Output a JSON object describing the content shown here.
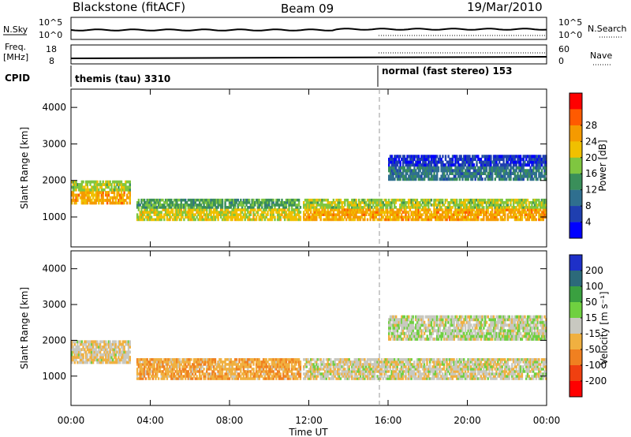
{
  "header": {
    "station": "Blackstone (fitACF)",
    "beam": "Beam 09",
    "date": "19/Mar/2010"
  },
  "panels": {
    "nsky": {
      "left_label": "N.Sky",
      "right_label": "N.Search",
      "left_ticks": [
        "10^5",
        "10^0"
      ],
      "right_ticks": [
        "10^5",
        "10^0"
      ]
    },
    "freq": {
      "left_label_1": "Freq.",
      "left_label_2": "[MHz]",
      "right_label": "Nave",
      "left_ticks": [
        "18",
        "8"
      ],
      "right_ticks": [
        "60",
        "0"
      ]
    },
    "cpid": {
      "label": "CPID",
      "mode_1": "themis (tau) 3310",
      "mode_2": "normal (fast stereo) 153"
    }
  },
  "axes": {
    "ylabel": "Slant Range [km]",
    "xlabel": "Time UT",
    "yticks": [
      1000,
      2000,
      3000,
      4000
    ],
    "xticks": [
      "00:00",
      "04:00",
      "08:00",
      "12:00",
      "16:00",
      "20:00",
      "00:00"
    ]
  },
  "colorbars": {
    "power": {
      "label": "Power [dB]",
      "ticks": [
        "4",
        "8",
        "12",
        "16",
        "20",
        "24",
        "28"
      ],
      "colors": [
        "#0000ff",
        "#1f3fb0",
        "#2f6f8f",
        "#3a8f5a",
        "#7fc640",
        "#f0c000",
        "#f59a00",
        "#ff5a00",
        "#ff0000"
      ]
    },
    "velocity": {
      "label": "Velocity [m s⁻¹]",
      "ticks": [
        "200",
        "100",
        "50",
        "15",
        "-15",
        "-50",
        "-100",
        "-200"
      ],
      "colors": [
        "#1e30c8",
        "#2c6a7a",
        "#3aa040",
        "#6fd040",
        "#c8c8c0",
        "#f0b040",
        "#f08020",
        "#f04010",
        "#ff0000"
      ]
    }
  },
  "chart_data": {
    "type": "heatmap",
    "title": "Blackstone (fitACF)  Beam 09  19/Mar/2010",
    "xlabel": "Time UT",
    "ylabel": "Slant Range [km]",
    "xlim_hours": [
      0,
      24
    ],
    "ylim_km": [
      180,
      4500
    ],
    "cpid_change_hour": 15.6,
    "echo_bands": [
      {
        "t_start": 0.0,
        "t_end": 3.0,
        "range_low": 1350,
        "range_high": 2000,
        "power_db": 22,
        "velocity": -10
      },
      {
        "t_start": 3.3,
        "t_end": 11.6,
        "range_low": 900,
        "range_high": 1500,
        "power_db": 18,
        "velocity": -40
      },
      {
        "t_start": 11.7,
        "t_end": 24.0,
        "range_low": 900,
        "range_high": 1500,
        "power_db": 22,
        "velocity": -5
      },
      {
        "t_start": 16.0,
        "t_end": 24.0,
        "range_low": 2000,
        "range_high": 2700,
        "power_db": 8,
        "velocity": 5
      }
    ]
  }
}
